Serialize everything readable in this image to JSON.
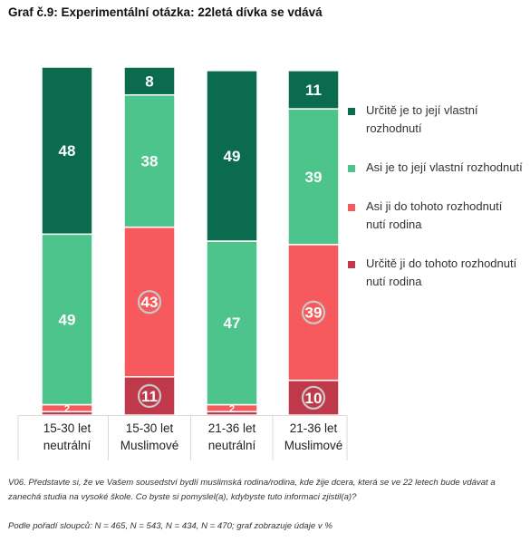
{
  "title": "Graf č.9: Experimentální otázka: 22letá dívka se vdává",
  "chart_data": {
    "type": "bar",
    "stacked": true,
    "categories": [
      [
        "15-30 let",
        "neutrální"
      ],
      [
        "15-30 let",
        "Muslimové"
      ],
      [
        "21-36 let",
        "neutrální"
      ],
      [
        "21-36 let",
        "Muslimové"
      ]
    ],
    "series": [
      {
        "name": "Určitě ji do tohoto rozhodnutí nutí rodina",
        "color": "#c0394b",
        "values": [
          1,
          11,
          1,
          10
        ],
        "labels": [
          "",
          "11",
          "",
          "10"
        ],
        "circled": [
          false,
          true,
          false,
          true
        ]
      },
      {
        "name": "Asi ji do tohoto rozhodnutí nutí rodina",
        "color": "#f75a5c",
        "values": [
          2,
          43,
          2,
          39
        ],
        "labels": [
          "2",
          "43",
          "2",
          "39"
        ],
        "circled": [
          false,
          true,
          false,
          true
        ]
      },
      {
        "name": "Asi je to její vlastní rozhodnutí",
        "color": "#4dc48b",
        "values": [
          49,
          38,
          47,
          39
        ],
        "labels": [
          "49",
          "38",
          "47",
          "39"
        ],
        "circled": [
          false,
          false,
          false,
          false
        ]
      },
      {
        "name": "Určitě je to její vlastní rozhodnutí",
        "color": "#0b6b4f",
        "values": [
          48,
          8,
          49,
          11
        ],
        "labels": [
          "48",
          "8",
          "49",
          "11"
        ],
        "circled": [
          false,
          false,
          false,
          false
        ]
      }
    ],
    "ylim": [
      0,
      100
    ],
    "legend_position": "right",
    "legend_order": [
      3,
      2,
      1,
      0
    ]
  },
  "footnote_question": "V06. Představte si, že ve Vašem sousedství bydlí muslimská rodina/rodina, kde žije dcera, která se ve 22 letech bude vdávat a zanechá studia na vysoké škole. Co byste si pomyslel(a), kdybyste tuto informaci zjistil(a)?",
  "footnote_sample": "Podle pořadí sloupců: N = 465, N = 543, N = 434, N = 470; graf zobrazuje údaje v %"
}
